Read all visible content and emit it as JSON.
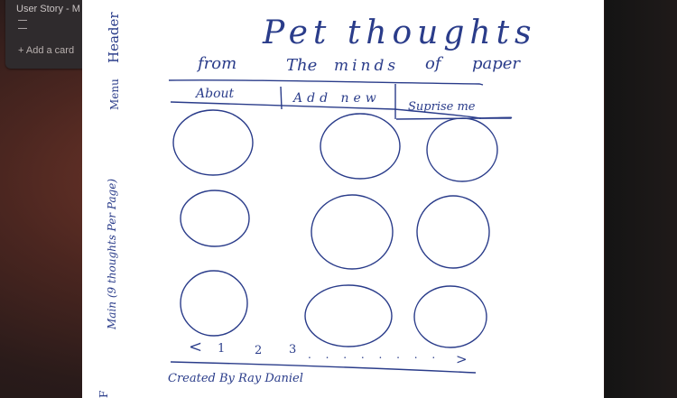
{
  "background": {
    "card_title": "User Story - M",
    "add_card_label": "Add a card"
  },
  "sketch": {
    "title": "Pet thoughts",
    "subtitle_words": [
      "from",
      "The",
      "minds",
      "of",
      "paper"
    ],
    "nav": [
      "About",
      "Add new",
      "Suprise me"
    ],
    "pagination": [
      "<",
      "1",
      "2",
      "3",
      ". . . . . . . .",
      ">"
    ],
    "footer": "Created By Ray Daniel",
    "annotations": {
      "header": "Header",
      "menu": "Menu",
      "main": "Main (9 thoughts Per Page)",
      "footer_mark": "F"
    }
  },
  "colors": {
    "ink": "#2a3c8a",
    "paper": "#ffffff"
  }
}
